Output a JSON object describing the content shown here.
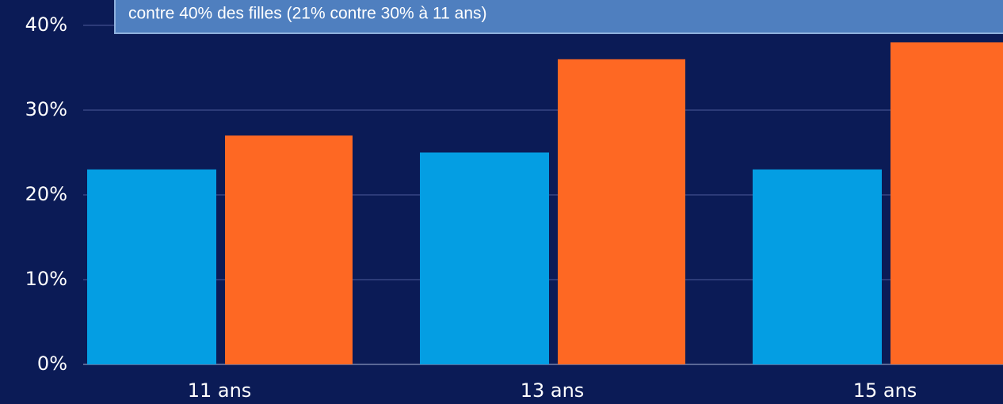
{
  "chart_data": {
    "type": "bar",
    "annotation": "contre 40% des filles (21% contre 30% à 11 ans)",
    "categories": [
      "11 ans",
      "13 ans",
      "15 ans"
    ],
    "series": [
      {
        "color": "#049ee3",
        "values": [
          23,
          25,
          23
        ]
      },
      {
        "color": "#fe6823",
        "values": [
          27,
          36,
          38
        ]
      }
    ],
    "ylim": [
      0,
      40
    ],
    "yticks": [
      {
        "value": 0,
        "label": "0%"
      },
      {
        "value": 10,
        "label": "10%"
      },
      {
        "value": 20,
        "label": "20%"
      },
      {
        "value": 30,
        "label": "30%"
      },
      {
        "value": 40,
        "label": "40%"
      }
    ],
    "grid": true
  }
}
